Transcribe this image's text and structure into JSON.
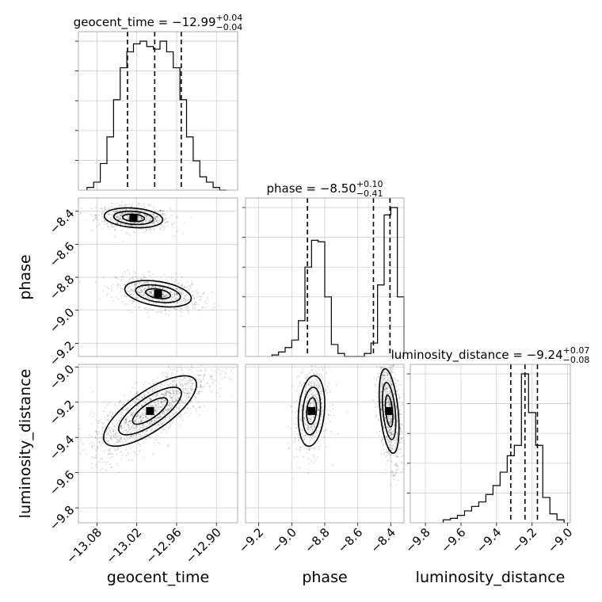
{
  "chart_data": {
    "type": "corner",
    "parameters": [
      "geocent_time",
      "phase",
      "luminosity_distance"
    ],
    "axes": {
      "geocent_time": {
        "label": "geocent_time",
        "lim": [
          -13.108,
          -12.868
        ],
        "ticks": [
          -13.08,
          -13.02,
          -12.96,
          -12.9
        ],
        "tick_labels": [
          "−13.08",
          "−13.02",
          "−12.96",
          "−12.90"
        ]
      },
      "phase": {
        "label": "phase",
        "lim": [
          -9.28,
          -8.32
        ],
        "ticks": [
          -9.2,
          -9.0,
          -8.8,
          -8.6,
          -8.4
        ],
        "tick_labels": [
          "−9.2",
          "−9.0",
          "−8.8",
          "−8.6",
          "−8.4"
        ]
      },
      "luminosity_distance": {
        "label": "luminosity_distance",
        "lim": [
          -9.885,
          -8.985
        ],
        "ticks": [
          -9.8,
          -9.6,
          -9.4,
          -9.2,
          -9.0
        ],
        "tick_labels": [
          "−9.8",
          "−9.6",
          "−9.4",
          "−9.2",
          "−9.0"
        ]
      }
    },
    "titles": [
      {
        "param": "geocent_time",
        "name": "geocent_time",
        "median": "−12.99",
        "plus": "+0.04",
        "minus": "−0.04"
      },
      {
        "param": "phase",
        "name": "phase",
        "median": "−8.50",
        "plus": "+0.10",
        "minus": "−0.41"
      },
      {
        "param": "luminosity_distance",
        "name": "luminosity_distance",
        "median": "−9.24",
        "plus": "+0.07",
        "minus": "−0.08"
      }
    ],
    "quantiles": {
      "geocent_time": [
        -13.034,
        -12.993,
        -12.953
      ],
      "phase": [
        -8.905,
        -8.505,
        -8.405
      ],
      "luminosity_distance": [
        -9.32,
        -9.24,
        -9.17
      ]
    },
    "histograms": {
      "geocent_time": {
        "edges": [
          -13.095,
          -13.085,
          -13.075,
          -13.065,
          -13.055,
          -13.045,
          -13.035,
          -13.025,
          -13.015,
          -13.005,
          -12.995,
          -12.985,
          -12.975,
          -12.965,
          -12.955,
          -12.945,
          -12.935,
          -12.925,
          -12.915,
          -12.905,
          -12.895,
          -12.885
        ],
        "counts": [
          1,
          3,
          10,
          20,
          34,
          46,
          52,
          55,
          56,
          54,
          53,
          56,
          52,
          46,
          34,
          20,
          11,
          5,
          3,
          1,
          0
        ]
      },
      "phase": {
        "edges": [
          -9.12,
          -9.08,
          -9.04,
          -9.0,
          -8.96,
          -8.92,
          -8.88,
          -8.84,
          -8.8,
          -8.76,
          -8.72,
          -8.68,
          -8.64,
          -8.6,
          -8.56,
          -8.52,
          -8.48,
          -8.44,
          -8.4,
          -8.36,
          -8.32
        ],
        "counts": [
          1,
          3,
          6,
          11,
          24,
          60,
          78,
          77,
          40,
          8,
          2,
          0,
          0,
          0,
          2,
          9,
          48,
          95,
          100,
          40
        ]
      },
      "luminosity_distance": {
        "edges": [
          -9.7,
          -9.66,
          -9.62,
          -9.58,
          -9.54,
          -9.5,
          -9.46,
          -9.42,
          -9.38,
          -9.34,
          -9.3,
          -9.26,
          -9.22,
          -9.18,
          -9.14,
          -9.1,
          -9.06,
          -9.02
        ],
        "counts": [
          2,
          3,
          5,
          8,
          11,
          14,
          19,
          25,
          34,
          45,
          52,
          100,
          74,
          52,
          17,
          6,
          2
        ]
      }
    },
    "joint_modes": [
      {
        "x": "geocent_time",
        "y": "phase",
        "modes": [
          {
            "cx": -13.025,
            "cy": -8.44,
            "sx": 0.022,
            "sy": 0.03,
            "weight": 0.5,
            "rho": -0.2
          },
          {
            "cx": -12.988,
            "cy": -8.9,
            "sx": 0.025,
            "sy": 0.04,
            "weight": 0.5,
            "rho": -0.35
          }
        ]
      },
      {
        "x": "geocent_time",
        "y": "luminosity_distance",
        "modes": [
          {
            "cx": -13.0,
            "cy": -9.25,
            "sx": 0.035,
            "sy": 0.1,
            "weight": 1.0,
            "rho": 0.75
          }
        ]
      },
      {
        "x": "phase",
        "y": "luminosity_distance",
        "modes": [
          {
            "cx": -8.88,
            "cy": -9.25,
            "sx": 0.04,
            "sy": 0.1,
            "weight": 0.45,
            "rho": 0.2
          },
          {
            "cx": -8.41,
            "cy": -9.25,
            "sx": 0.03,
            "sy": 0.12,
            "weight": 0.55,
            "rho": -0.4
          }
        ]
      }
    ],
    "grid": true
  }
}
